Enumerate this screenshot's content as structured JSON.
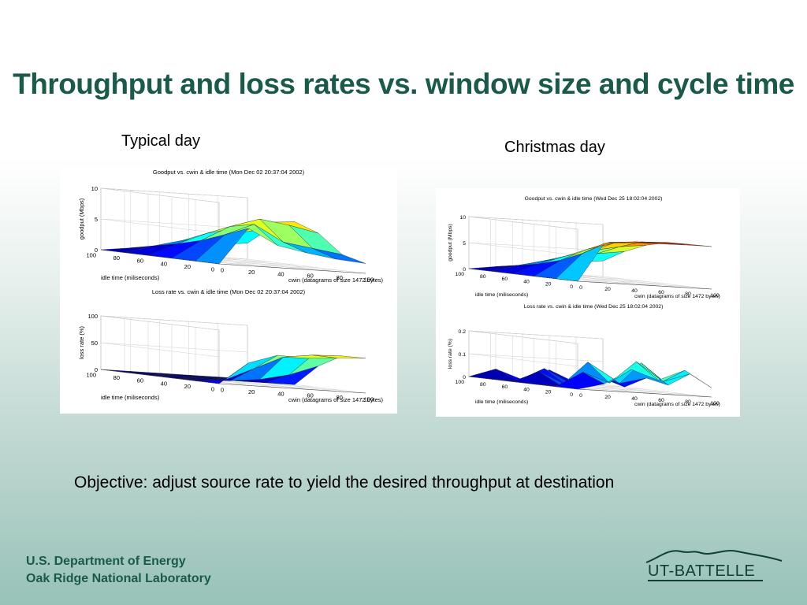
{
  "slide": {
    "title": "Throughput and loss rates vs. window size and cycle time",
    "label_left": "Typical day",
    "label_right": "Christmas day",
    "objective": "Objective: adjust source rate to yield the desired throughput at destination",
    "footer_line1": "U.S. Department of Energy",
    "footer_line2": "Oak Ridge National Laboratory",
    "logo_text": "UT-BATTELLE"
  },
  "colors": {
    "title": "#1a5a4b",
    "footer": "#1a5a4b"
  },
  "chart_data": [
    {
      "type": "surface3d",
      "panel": "typical-day",
      "title": "Goodput vs. cwin & idle time (Mon Dec 02 20:37:04 2002)",
      "zlabel": "goodput (Mbps)",
      "xlabel": "cwin (datagrams of size 1472 bytes)",
      "ylabel": "idle time (miliseconds)",
      "xticks": [
        "0",
        "20",
        "40",
        "60",
        "80",
        "100"
      ],
      "yticks": [
        "0",
        "20",
        "40",
        "60",
        "80",
        "100"
      ],
      "zticks": [
        "0",
        "5",
        "10"
      ],
      "zlim": [
        0,
        10
      ],
      "cwin": [
        0,
        20,
        40,
        60,
        80,
        100
      ],
      "idle": [
        100,
        80,
        60,
        40,
        20,
        0
      ],
      "z": [
        [
          0.0,
          0.6,
          1.1,
          1.6,
          2.1,
          2.6
        ],
        [
          0.0,
          1.4,
          2.6,
          3.6,
          4.5,
          5.6
        ],
        [
          0.0,
          2.2,
          4.2,
          5.4,
          6.6,
          7.0
        ],
        [
          0.0,
          3.2,
          5.8,
          7.3,
          6.6,
          5.6
        ],
        [
          0.0,
          4.6,
          6.6,
          4.0,
          3.3,
          2.6
        ],
        [
          0.0,
          6.1,
          3.6,
          2.7,
          2.0,
          1.6
        ]
      ]
    },
    {
      "type": "surface3d",
      "panel": "typical-day",
      "title": "Loss rate vs. cwin & idle time (Mon Dec 02 20:37:04 2002)",
      "zlabel": "loss rate (%)",
      "xlabel": "cwin (datagrams of size 1472 bytes)",
      "ylabel": "idle time (miliseconds)",
      "xticks": [
        "0",
        "20",
        "40",
        "60",
        "80",
        "100"
      ],
      "yticks": [
        "0",
        "20",
        "40",
        "60",
        "80",
        "100"
      ],
      "zticks": [
        "0",
        "50",
        "100"
      ],
      "zlim": [
        0,
        100
      ],
      "cwin": [
        0,
        20,
        40,
        60,
        80,
        100
      ],
      "idle": [
        100,
        80,
        60,
        40,
        20,
        0
      ],
      "z": [
        [
          0,
          0,
          0,
          0,
          0,
          0
        ],
        [
          0,
          0,
          0,
          0,
          0,
          0
        ],
        [
          0,
          0,
          0,
          0,
          0,
          0
        ],
        [
          0,
          0,
          2,
          8,
          20,
          40
        ],
        [
          0,
          5,
          30,
          55,
          62,
          64
        ],
        [
          0,
          42,
          60,
          58,
          62,
          65
        ]
      ]
    },
    {
      "type": "surface3d",
      "panel": "christmas-day",
      "title": "Goodput vs. cwin & idle time (Wed Dec 25 18:02:04 2002)",
      "zlabel": "goodput (Mbps)",
      "xlabel": "cwin (datagrams of size 1472 bytes)",
      "ylabel": "idle time (miliseconds)",
      "xticks": [
        "0",
        "20",
        "40",
        "60",
        "80",
        "100"
      ],
      "yticks": [
        "0",
        "20",
        "40",
        "60",
        "80",
        "100"
      ],
      "zticks": [
        "0",
        "5",
        "10"
      ],
      "zlim": [
        0,
        10
      ],
      "cwin": [
        0,
        20,
        40,
        60,
        80,
        100
      ],
      "idle": [
        100,
        80,
        60,
        40,
        20,
        0
      ],
      "z": [
        [
          0.0,
          0.7,
          1.3,
          1.9,
          2.5,
          3.0
        ],
        [
          0.0,
          1.4,
          2.6,
          3.7,
          4.6,
          5.3
        ],
        [
          0.0,
          2.2,
          4.0,
          5.4,
          6.4,
          7.0
        ],
        [
          0.0,
          3.4,
          5.8,
          7.3,
          7.8,
          8.0
        ],
        [
          0.0,
          5.2,
          7.6,
          8.0,
          8.1,
          8.1
        ],
        [
          0.0,
          7.6,
          8.0,
          8.1,
          8.2,
          8.2
        ]
      ]
    },
    {
      "type": "surface3d",
      "panel": "christmas-day",
      "title": "Loss rate vs. cwin & idle time (Wed Dec 25 18:02:04 2002)",
      "zlabel": "loss rate (%)",
      "xlabel": "cwin (datagrams of size 1472 bytes)",
      "ylabel": "idle time (miliseconds)",
      "xticks": [
        "0",
        "20",
        "40",
        "60",
        "80",
        "100"
      ],
      "yticks": [
        "0",
        "20",
        "40",
        "60",
        "80",
        "100"
      ],
      "zticks": [
        "0",
        "0.1",
        "0.2"
      ],
      "zlim": [
        0,
        0.2
      ],
      "cwin": [
        0,
        20,
        40,
        60,
        80,
        100
      ],
      "idle": [
        100,
        80,
        60,
        40,
        20,
        0
      ],
      "z": [
        [
          0.0,
          0.04,
          0.0,
          0.05,
          0.0,
          0.03
        ],
        [
          0.0,
          0.0,
          0.06,
          0.0,
          0.04,
          0.0
        ],
        [
          0.0,
          0.05,
          0.0,
          0.09,
          0.02,
          0.05
        ],
        [
          0.0,
          0.0,
          0.11,
          0.04,
          0.12,
          0.03
        ],
        [
          0.0,
          0.07,
          0.03,
          0.13,
          0.05,
          0.09
        ],
        [
          0.0,
          0.03,
          0.1,
          0.06,
          0.11,
          0.04
        ]
      ]
    }
  ]
}
